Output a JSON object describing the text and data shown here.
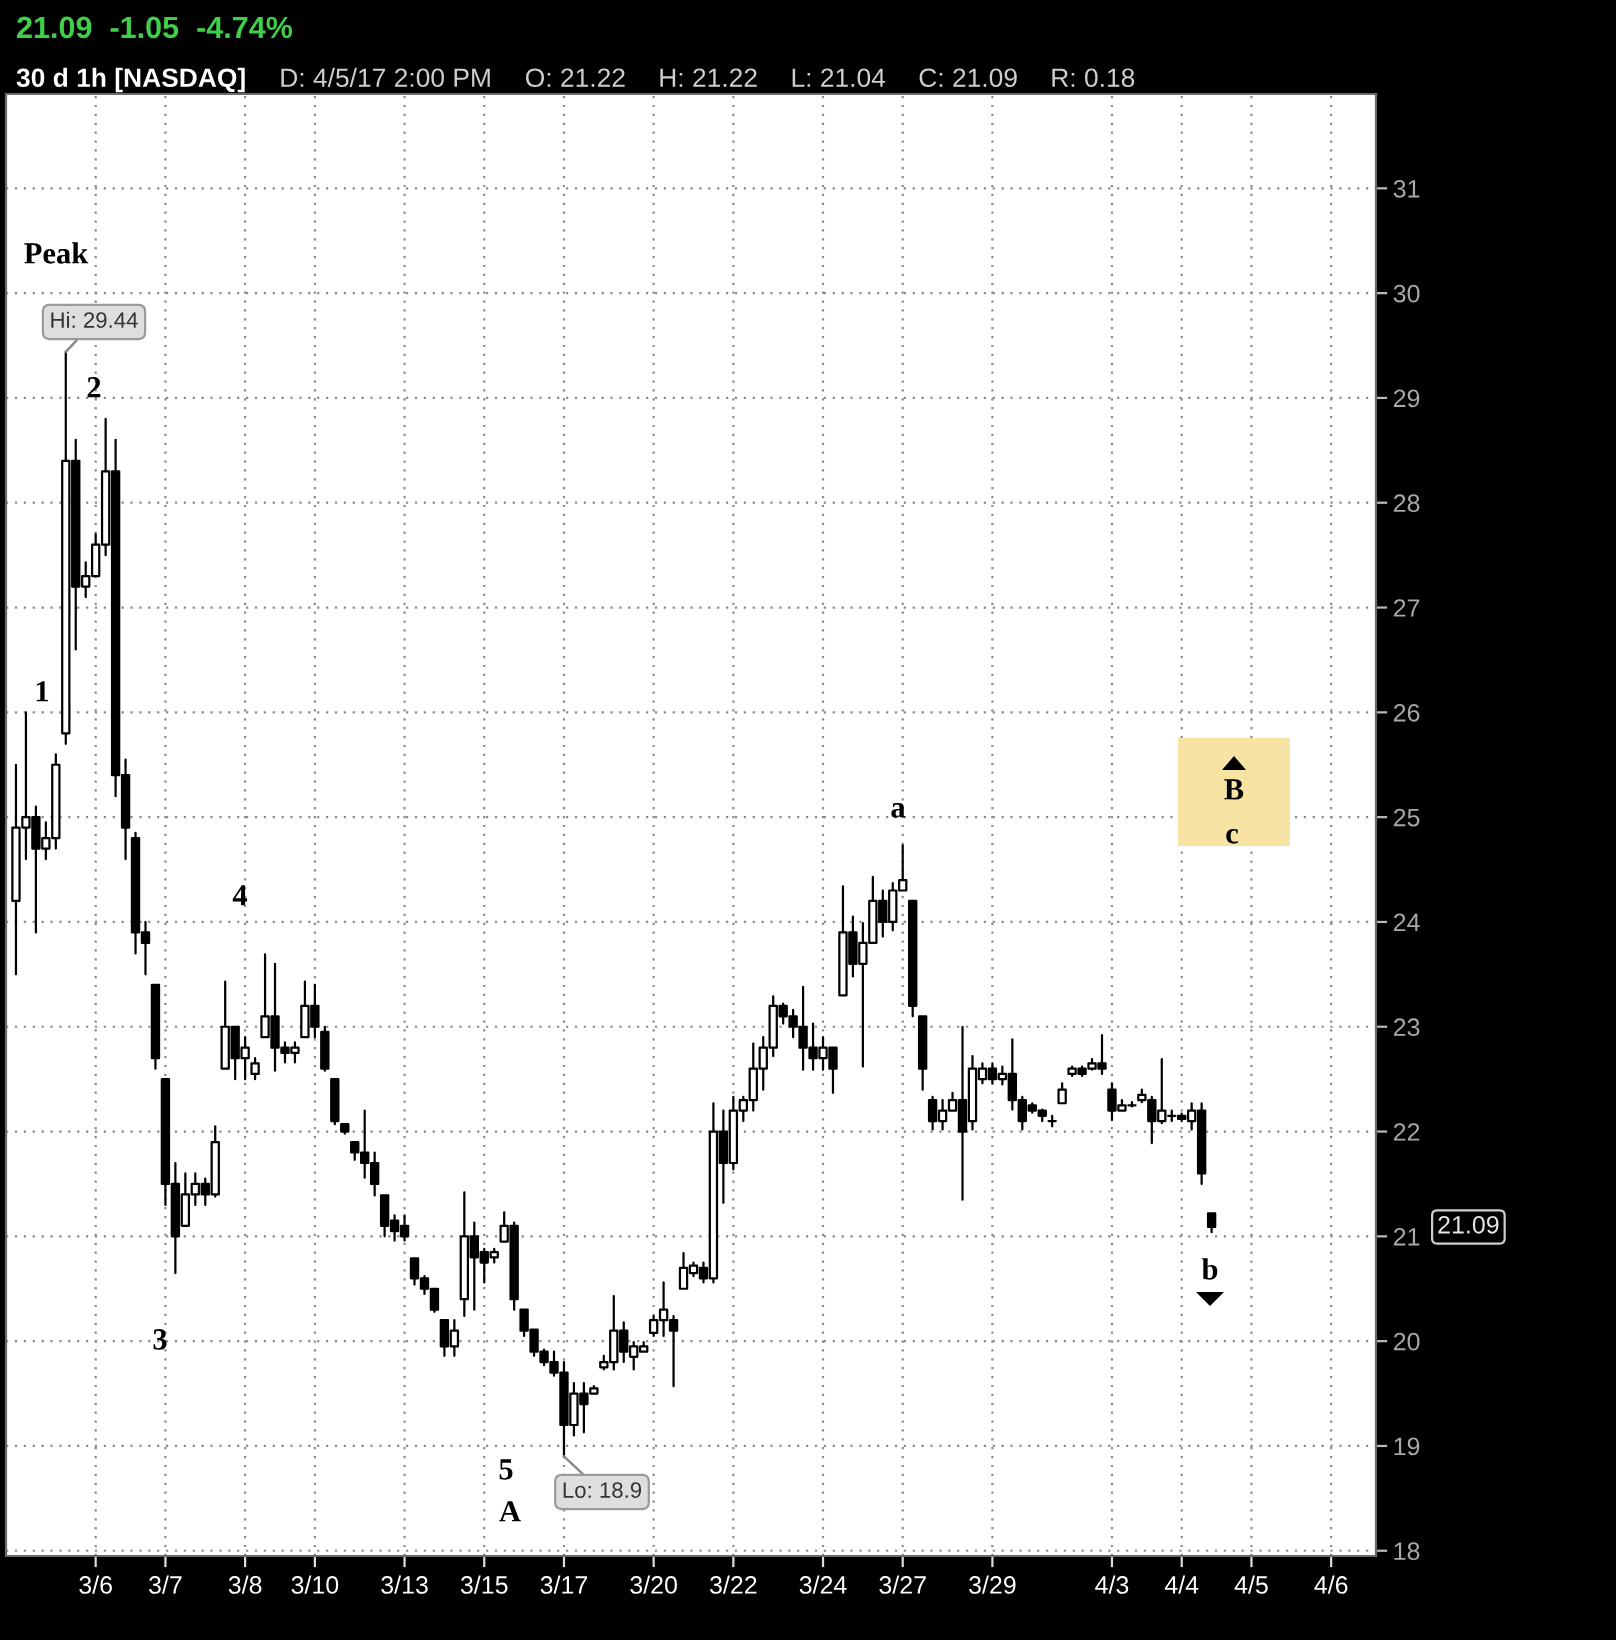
{
  "chart_data": {
    "type": "candlestick",
    "title": "30 d 1h [NASDAQ]",
    "subtitle": "21.09  -1.05  -4.74%",
    "categories": [
      null,
      null,
      null,
      null,
      null,
      null,
      null,
      null,
      "3/6",
      null,
      null,
      null,
      null,
      null,
      null,
      "3/7",
      null,
      null,
      null,
      null,
      null,
      null,
      null,
      "3/8",
      null,
      null,
      null,
      null,
      null,
      null,
      "3/10",
      null,
      null,
      null,
      null,
      null,
      null,
      null,
      null,
      "3/13",
      null,
      null,
      null,
      null,
      null,
      null,
      null,
      "3/15",
      null,
      null,
      null,
      null,
      null,
      null,
      null,
      "3/17",
      null,
      null,
      null,
      null,
      null,
      null,
      null,
      null,
      "3/20",
      null,
      null,
      null,
      null,
      null,
      null,
      null,
      "3/22",
      null,
      null,
      null,
      null,
      null,
      null,
      null,
      null,
      "3/24",
      null,
      null,
      null,
      null,
      null,
      null,
      null,
      "3/27",
      null,
      null,
      null,
      null,
      null,
      null,
      null,
      null,
      "3/29",
      null,
      null,
      null,
      null,
      null,
      null,
      null,
      null,
      null,
      null,
      null,
      "4/3",
      null,
      null,
      null,
      null,
      null,
      null,
      "4/4",
      null,
      null,
      null,
      null,
      null,
      null,
      "4/5",
      null,
      null,
      null,
      null,
      null,
      null,
      null,
      "4/6",
      null,
      null,
      null,
      null
    ],
    "ohlc": [
      [
        24.2,
        25.5,
        23.5,
        24.9
      ],
      [
        24.9,
        26.0,
        24.6,
        25.0
      ],
      [
        25.0,
        25.1,
        23.9,
        24.7
      ],
      [
        24.7,
        24.95,
        24.6,
        24.8
      ],
      [
        24.8,
        25.6,
        24.7,
        25.5
      ],
      [
        25.8,
        29.44,
        25.7,
        28.4
      ],
      [
        28.4,
        28.6,
        26.6,
        27.2
      ],
      [
        27.2,
        27.43,
        27.1,
        27.3
      ],
      [
        27.3,
        27.7,
        27.3,
        27.6
      ],
      [
        27.6,
        28.8,
        27.5,
        28.3
      ],
      [
        28.3,
        28.6,
        25.2,
        25.4
      ],
      [
        25.4,
        25.55,
        24.6,
        24.9
      ],
      [
        24.8,
        24.85,
        23.7,
        23.9
      ],
      [
        23.9,
        24.0,
        23.5,
        23.8
      ],
      [
        23.4,
        23.4,
        22.6,
        22.7
      ],
      [
        22.5,
        22.5,
        21.3,
        21.5
      ],
      [
        21.5,
        21.7,
        20.65,
        21.0
      ],
      [
        21.1,
        21.6,
        21.1,
        21.4
      ],
      [
        21.4,
        21.6,
        21.3,
        21.5
      ],
      [
        21.5,
        21.55,
        21.3,
        21.4
      ],
      [
        21.4,
        22.05,
        21.38,
        21.9
      ],
      [
        22.6,
        23.43,
        22.6,
        23.0
      ],
      [
        23.0,
        23.0,
        22.5,
        22.7
      ],
      [
        22.7,
        22.9,
        22.5,
        22.8
      ],
      [
        22.55,
        22.7,
        22.5,
        22.65
      ],
      [
        22.9,
        23.69,
        22.9,
        23.1
      ],
      [
        23.1,
        23.6,
        22.58,
        22.8
      ],
      [
        22.8,
        22.85,
        22.66,
        22.75
      ],
      [
        22.75,
        22.85,
        22.66,
        22.8
      ],
      [
        22.9,
        23.43,
        22.9,
        23.2
      ],
      [
        23.2,
        23.4,
        22.9,
        23.0
      ],
      [
        22.95,
        23.0,
        22.58,
        22.6
      ],
      [
        22.5,
        22.5,
        22.07,
        22.1
      ],
      [
        22.07,
        22.07,
        21.98,
        22.0
      ],
      [
        21.9,
        21.9,
        21.73,
        21.8
      ],
      [
        21.8,
        22.2,
        21.56,
        21.7
      ],
      [
        21.7,
        21.8,
        21.39,
        21.5
      ],
      [
        21.39,
        21.39,
        21.0,
        21.1
      ],
      [
        21.15,
        21.2,
        20.96,
        21.05
      ],
      [
        21.1,
        21.2,
        20.96,
        21.0
      ],
      [
        20.79,
        20.79,
        20.54,
        20.6
      ],
      [
        20.6,
        20.62,
        20.45,
        20.5
      ],
      [
        20.5,
        20.5,
        20.28,
        20.3
      ],
      [
        20.2,
        20.2,
        19.86,
        19.95
      ],
      [
        19.95,
        20.2,
        19.86,
        20.1
      ],
      [
        20.4,
        21.42,
        20.24,
        21.0
      ],
      [
        21.0,
        21.13,
        20.3,
        20.8
      ],
      [
        20.85,
        20.88,
        20.56,
        20.75
      ],
      [
        20.8,
        20.88,
        20.75,
        20.85
      ],
      [
        20.95,
        21.23,
        20.95,
        21.1
      ],
      [
        21.1,
        21.13,
        20.3,
        20.4
      ],
      [
        20.3,
        20.3,
        20.05,
        20.1
      ],
      [
        20.11,
        20.11,
        19.86,
        19.9
      ],
      [
        19.9,
        19.92,
        19.77,
        19.8
      ],
      [
        19.8,
        19.9,
        19.67,
        19.7
      ],
      [
        19.7,
        19.8,
        18.9,
        19.2
      ],
      [
        19.2,
        19.6,
        19.1,
        19.5
      ],
      [
        19.5,
        19.6,
        19.13,
        19.4
      ],
      [
        19.5,
        19.57,
        19.5,
        19.55
      ],
      [
        19.75,
        19.86,
        19.73,
        19.8
      ],
      [
        19.8,
        20.43,
        19.73,
        20.1
      ],
      [
        20.1,
        20.18,
        19.8,
        19.9
      ],
      [
        19.85,
        19.99,
        19.73,
        19.95
      ],
      [
        19.9,
        19.99,
        19.9,
        19.95
      ],
      [
        20.08,
        20.24,
        20.05,
        20.2
      ],
      [
        20.2,
        20.56,
        20.05,
        20.3
      ],
      [
        20.2,
        20.24,
        19.57,
        20.1
      ],
      [
        20.5,
        20.84,
        20.5,
        20.7
      ],
      [
        20.65,
        20.75,
        20.62,
        20.72
      ],
      [
        20.7,
        20.75,
        20.56,
        20.6
      ],
      [
        20.6,
        22.27,
        20.56,
        22.0
      ],
      [
        22.0,
        22.2,
        21.32,
        21.7
      ],
      [
        21.7,
        22.33,
        21.64,
        22.2
      ],
      [
        22.2,
        22.33,
        22.1,
        22.3
      ],
      [
        22.3,
        22.84,
        22.2,
        22.6
      ],
      [
        22.6,
        22.9,
        22.4,
        22.8
      ],
      [
        22.8,
        23.29,
        22.72,
        23.2
      ],
      [
        23.2,
        23.22,
        23.03,
        23.1
      ],
      [
        23.1,
        23.16,
        22.9,
        23.0
      ],
      [
        23.0,
        23.38,
        22.59,
        22.8
      ],
      [
        22.8,
        23.03,
        22.59,
        22.7
      ],
      [
        22.7,
        22.9,
        22.59,
        22.8
      ],
      [
        22.8,
        22.8,
        22.37,
        22.6
      ],
      [
        23.3,
        24.34,
        23.3,
        23.9
      ],
      [
        23.9,
        24.05,
        23.48,
        23.6
      ],
      [
        23.6,
        23.99,
        22.62,
        23.8
      ],
      [
        23.8,
        24.43,
        23.8,
        24.2
      ],
      [
        24.2,
        24.3,
        23.86,
        24.0
      ],
      [
        24.0,
        24.37,
        23.92,
        24.3
      ],
      [
        24.3,
        24.73,
        24.3,
        24.4
      ],
      [
        24.2,
        24.2,
        23.1,
        23.2
      ],
      [
        23.1,
        23.1,
        22.4,
        22.6
      ],
      [
        22.3,
        22.33,
        22.02,
        22.1
      ],
      [
        22.1,
        22.3,
        22.02,
        22.2
      ],
      [
        22.2,
        22.37,
        22.2,
        22.3
      ],
      [
        22.3,
        23.0,
        21.35,
        22.0
      ],
      [
        22.1,
        22.72,
        22.02,
        22.6
      ],
      [
        22.5,
        22.65,
        22.46,
        22.6
      ],
      [
        22.6,
        22.65,
        22.46,
        22.5
      ],
      [
        22.5,
        22.62,
        22.45,
        22.55
      ],
      [
        22.55,
        22.88,
        22.21,
        22.3
      ],
      [
        22.3,
        22.33,
        22.02,
        22.1
      ],
      [
        22.25,
        22.27,
        22.18,
        22.2
      ],
      [
        22.2,
        22.21,
        22.1,
        22.15
      ],
      [
        22.1,
        22.15,
        22.05,
        22.1
      ],
      [
        22.27,
        22.46,
        22.27,
        22.4
      ],
      [
        22.55,
        22.62,
        22.53,
        22.6
      ],
      [
        22.6,
        22.62,
        22.53,
        22.55
      ],
      [
        22.6,
        22.69,
        22.59,
        22.65
      ],
      [
        22.65,
        22.92,
        22.55,
        22.6
      ],
      [
        22.4,
        22.46,
        22.11,
        22.2
      ],
      [
        22.2,
        22.3,
        22.2,
        22.25
      ],
      [
        22.25,
        22.28,
        22.24,
        22.25
      ],
      [
        22.3,
        22.4,
        22.28,
        22.35
      ],
      [
        22.3,
        22.33,
        21.89,
        22.1
      ],
      [
        22.1,
        22.69,
        22.08,
        22.2
      ],
      [
        22.15,
        22.2,
        22.1,
        22.15
      ],
      [
        22.15,
        22.17,
        22.1,
        22.12
      ],
      [
        22.1,
        22.27,
        22.02,
        22.2
      ],
      [
        22.2,
        22.27,
        21.5,
        21.6
      ],
      [
        21.22,
        21.22,
        21.04,
        21.09
      ],
      null,
      null,
      null,
      null,
      null,
      null,
      null,
      null,
      null,
      null,
      null,
      null,
      null,
      null,
      null,
      null
    ],
    "color": "#000000",
    "ylim": [
      17.95,
      31.9
    ],
    "yticks": [
      18,
      19,
      20,
      21,
      22,
      23,
      24,
      25,
      26,
      27,
      28,
      29,
      30,
      31
    ],
    "grid": true,
    "annotations": [
      "Peak",
      "Hi: 29.44",
      "2",
      "1",
      "4",
      "3",
      "5",
      "A",
      "Lo: 18.9",
      "a",
      "B",
      "c",
      "b",
      "21.09",
      "D: 4/5/17 2:00 PM",
      "O: 21.22",
      "H: 21.22",
      "L: 21.04",
      "C: 21.09",
      "R: 0.18"
    ]
  }
}
